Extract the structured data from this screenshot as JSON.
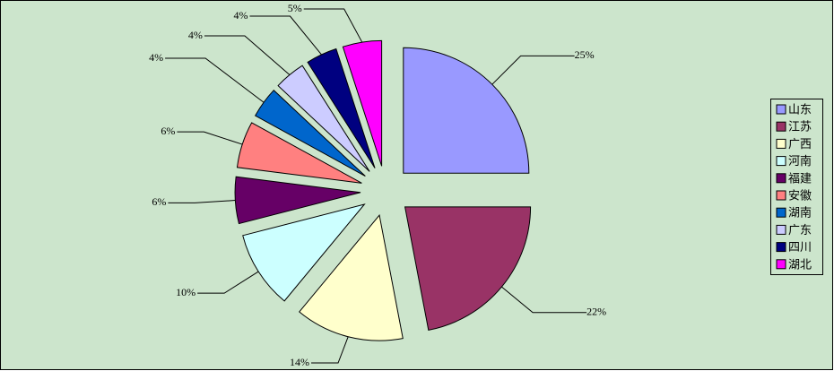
{
  "chart_data": {
    "type": "pie",
    "categories": [
      "山东",
      "江苏",
      "广西",
      "河南",
      "福建",
      "安徽",
      "湖南",
      "广东",
      "四川",
      "湖北"
    ],
    "values": [
      25,
      22,
      14,
      10,
      6,
      6,
      4,
      4,
      4,
      5
    ],
    "value_labels": [
      "25%",
      "22%",
      "14%",
      "10%",
      "6%",
      "6%",
      "4%",
      "4%",
      "4%",
      "5%"
    ],
    "colors": [
      "#9999ff",
      "#993366",
      "#ffffcc",
      "#ccffff",
      "#660066",
      "#ff8080",
      "#0066cc",
      "#ccccff",
      "#000080",
      "#ff00ff"
    ],
    "legend": "right"
  }
}
